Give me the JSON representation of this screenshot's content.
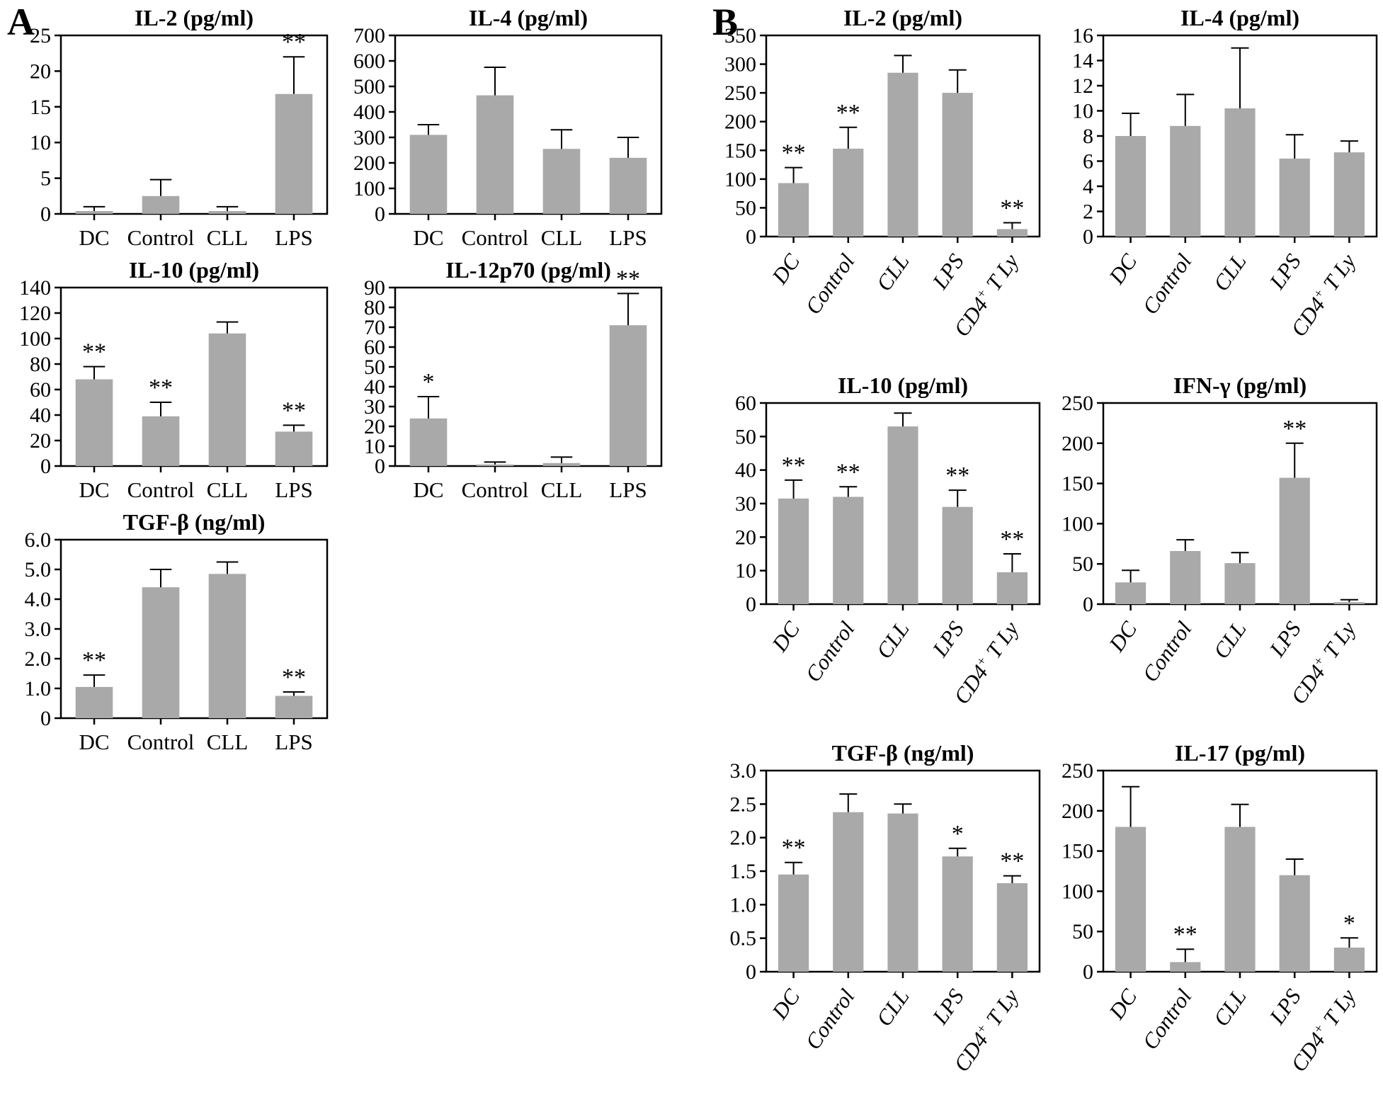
{
  "figure": {
    "panel_a_label": "A",
    "panel_b_label": "B",
    "bar_color": "#a9a9a9",
    "axis_color": "#000000"
  },
  "chart_data": [
    {
      "id": "a-il2",
      "panel": "A",
      "type": "bar",
      "title": "IL-2 (pg/ml)",
      "ylim": [
        0,
        25
      ],
      "yticks": [
        0,
        5,
        10,
        15,
        20,
        25
      ],
      "ytick_labels": [
        "0",
        "5",
        "10",
        "15",
        "20",
        "25"
      ],
      "categories": [
        "DC",
        "Control",
        "CLL",
        "LPS"
      ],
      "values": [
        0.4,
        2.5,
        0.4,
        16.8
      ],
      "error_tops": [
        1.0,
        4.8,
        1.0,
        22.0
      ],
      "sig": [
        "",
        "",
        "",
        "**"
      ],
      "xlabel_rotation": 0,
      "grid": false,
      "legend": null
    },
    {
      "id": "a-il4",
      "panel": "A",
      "type": "bar",
      "title": "IL-4 (pg/ml)",
      "ylim": [
        0,
        700
      ],
      "yticks": [
        0,
        100,
        200,
        300,
        400,
        500,
        600,
        700
      ],
      "ytick_labels": [
        "0",
        "100",
        "200",
        "300",
        "400",
        "500",
        "600",
        "700"
      ],
      "categories": [
        "DC",
        "Control",
        "CLL",
        "LPS"
      ],
      "values": [
        310,
        465,
        255,
        220
      ],
      "error_tops": [
        350,
        575,
        330,
        300
      ],
      "sig": [
        "",
        "",
        "",
        ""
      ],
      "xlabel_rotation": 0,
      "grid": false,
      "legend": null
    },
    {
      "id": "a-il10",
      "panel": "A",
      "type": "bar",
      "title": "IL-10 (pg/ml)",
      "ylim": [
        0,
        140
      ],
      "yticks": [
        0,
        20,
        40,
        60,
        80,
        100,
        120,
        140
      ],
      "ytick_labels": [
        "0",
        "20",
        "40",
        "60",
        "80",
        "100",
        "120",
        "140"
      ],
      "categories": [
        "DC",
        "Control",
        "CLL",
        "LPS"
      ],
      "values": [
        68,
        39,
        104,
        27
      ],
      "error_tops": [
        78,
        50,
        113,
        32
      ],
      "sig": [
        "**",
        "**",
        "",
        "**"
      ],
      "xlabel_rotation": 0,
      "grid": false,
      "legend": null
    },
    {
      "id": "a-il12p70",
      "panel": "A",
      "type": "bar",
      "title": "IL-12p70 (pg/ml)",
      "ylim": [
        0,
        90
      ],
      "yticks": [
        0,
        10,
        20,
        30,
        40,
        50,
        60,
        70,
        80,
        90
      ],
      "ytick_labels": [
        "0",
        "10",
        "20",
        "30",
        "40",
        "50",
        "60",
        "70",
        "80",
        "90"
      ],
      "categories": [
        "DC",
        "Control",
        "CLL",
        "LPS"
      ],
      "values": [
        24,
        0.8,
        1.5,
        71
      ],
      "error_tops": [
        35,
        2,
        4.5,
        87
      ],
      "sig": [
        "*",
        "",
        "",
        "**"
      ],
      "xlabel_rotation": 0,
      "grid": false,
      "legend": null
    },
    {
      "id": "a-tgfb",
      "panel": "A",
      "type": "bar",
      "title": "TGF-β (ng/ml)",
      "ylim": [
        0,
        6
      ],
      "yticks": [
        0,
        1,
        2,
        3,
        4,
        5,
        6
      ],
      "ytick_labels": [
        "0",
        "1.0",
        "2.0",
        "3.0",
        "4.0",
        "5.0",
        "6.0"
      ],
      "categories": [
        "DC",
        "Control",
        "CLL",
        "LPS"
      ],
      "values": [
        1.05,
        4.4,
        4.85,
        0.75
      ],
      "error_tops": [
        1.45,
        5.0,
        5.25,
        0.88
      ],
      "sig": [
        "**",
        "",
        "",
        "**"
      ],
      "xlabel_rotation": 0,
      "grid": false,
      "legend": null
    },
    {
      "id": "b-il2",
      "panel": "B",
      "type": "bar",
      "title": "IL-2 (pg/ml)",
      "ylim": [
        0,
        350
      ],
      "yticks": [
        0,
        50,
        100,
        150,
        200,
        250,
        300,
        350
      ],
      "ytick_labels": [
        "0",
        "50",
        "100",
        "150",
        "200",
        "250",
        "300",
        "350"
      ],
      "categories": [
        "DC",
        "Control",
        "CLL",
        "LPS",
        "CD4+ T Ly"
      ],
      "values": [
        93,
        153,
        285,
        250,
        13
      ],
      "error_tops": [
        120,
        190,
        315,
        290,
        24
      ],
      "sig": [
        "**",
        "**",
        "",
        "",
        "**"
      ],
      "xlabel_rotation": -55,
      "grid": false,
      "legend": null
    },
    {
      "id": "b-il4",
      "panel": "B",
      "type": "bar",
      "title": "IL-4 (pg/ml)",
      "ylim": [
        0,
        16
      ],
      "yticks": [
        0,
        2,
        4,
        6,
        8,
        10,
        12,
        14,
        16
      ],
      "ytick_labels": [
        "0",
        "2",
        "4",
        "6",
        "8",
        "10",
        "12",
        "14",
        "16"
      ],
      "categories": [
        "DC",
        "Control",
        "CLL",
        "LPS",
        "CD4+ T Ly"
      ],
      "values": [
        8.0,
        8.8,
        10.2,
        6.2,
        6.7
      ],
      "error_tops": [
        9.8,
        11.3,
        15.0,
        8.1,
        7.6
      ],
      "sig": [
        "",
        "",
        "",
        "",
        ""
      ],
      "xlabel_rotation": -55,
      "grid": false,
      "legend": null
    },
    {
      "id": "b-il10",
      "panel": "B",
      "type": "bar",
      "title": "IL-10 (pg/ml)",
      "ylim": [
        0,
        60
      ],
      "yticks": [
        0,
        10,
        20,
        30,
        40,
        50,
        60
      ],
      "ytick_labels": [
        "0",
        "10",
        "20",
        "30",
        "40",
        "50",
        "60"
      ],
      "categories": [
        "DC",
        "Control",
        "CLL",
        "LPS",
        "CD4+ T Ly"
      ],
      "values": [
        31.5,
        32,
        53,
        29,
        9.5
      ],
      "error_tops": [
        37,
        35,
        57,
        34,
        15
      ],
      "sig": [
        "**",
        "**",
        "",
        "**",
        "**"
      ],
      "xlabel_rotation": -55,
      "grid": false,
      "legend": null
    },
    {
      "id": "b-ifng",
      "panel": "B",
      "type": "bar",
      "title": "IFN-γ (pg/ml)",
      "ylim": [
        0,
        250
      ],
      "yticks": [
        0,
        50,
        100,
        150,
        200,
        250
      ],
      "ytick_labels": [
        "0",
        "50",
        "100",
        "150",
        "200",
        "250"
      ],
      "categories": [
        "DC",
        "Control",
        "CLL",
        "LPS",
        "CD4+ T Ly"
      ],
      "values": [
        27,
        66,
        51,
        157,
        2.5
      ],
      "error_tops": [
        42,
        80,
        64,
        200,
        5.5
      ],
      "sig": [
        "",
        "",
        "",
        "**",
        ""
      ],
      "xlabel_rotation": -55,
      "grid": false,
      "legend": null
    },
    {
      "id": "b-tgfb",
      "panel": "B",
      "type": "bar",
      "title": "TGF-β (ng/ml)",
      "ylim": [
        0,
        3
      ],
      "yticks": [
        0,
        0.5,
        1,
        1.5,
        2,
        2.5,
        3
      ],
      "ytick_labels": [
        "0",
        "0.5",
        "1.0",
        "1.5",
        "2.0",
        "2.5",
        "3.0"
      ],
      "categories": [
        "DC",
        "Control",
        "CLL",
        "LPS",
        "CD4+ T Ly"
      ],
      "values": [
        1.45,
        2.38,
        2.36,
        1.72,
        1.32
      ],
      "error_tops": [
        1.63,
        2.65,
        2.5,
        1.84,
        1.43
      ],
      "sig": [
        "**",
        "",
        "",
        "*",
        "**"
      ],
      "xlabel_rotation": -55,
      "grid": false,
      "legend": null
    },
    {
      "id": "b-il17",
      "panel": "B",
      "type": "bar",
      "title": "IL-17 (pg/ml)",
      "ylim": [
        0,
        250
      ],
      "yticks": [
        0,
        50,
        100,
        150,
        200,
        250
      ],
      "ytick_labels": [
        "0",
        "50",
        "100",
        "150",
        "200",
        "250"
      ],
      "categories": [
        "DC",
        "Control",
        "CLL",
        "LPS",
        "CD4+ T Ly"
      ],
      "values": [
        180,
        12,
        180,
        120,
        30
      ],
      "error_tops": [
        230,
        28,
        208,
        140,
        42
      ],
      "sig": [
        "",
        "**",
        "",
        "",
        "*"
      ],
      "xlabel_rotation": -55,
      "grid": false,
      "legend": null
    }
  ]
}
